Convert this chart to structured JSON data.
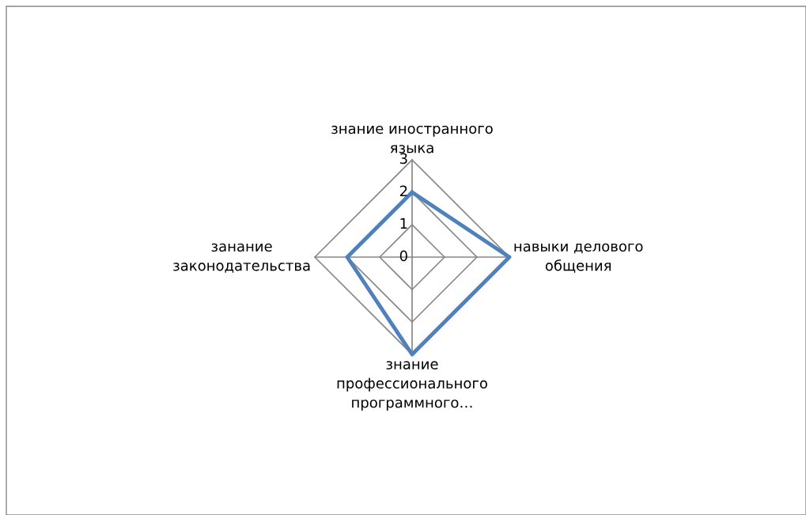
{
  "chart_data": {
    "type": "radar",
    "categories": [
      "знание иностранного\nязыка",
      "навыки делового\nобщения",
      "знание\nпрофессионального\nпрограммного…",
      "занание\nзаконодательства"
    ],
    "series": [
      {
        "color": "#4f81bd",
        "values": [
          2,
          3,
          3,
          2
        ]
      }
    ],
    "ylim": [
      0,
      3
    ],
    "yticks": [
      0,
      1,
      2,
      3
    ],
    "grid": true,
    "marker": "none",
    "line_style": "solid"
  }
}
